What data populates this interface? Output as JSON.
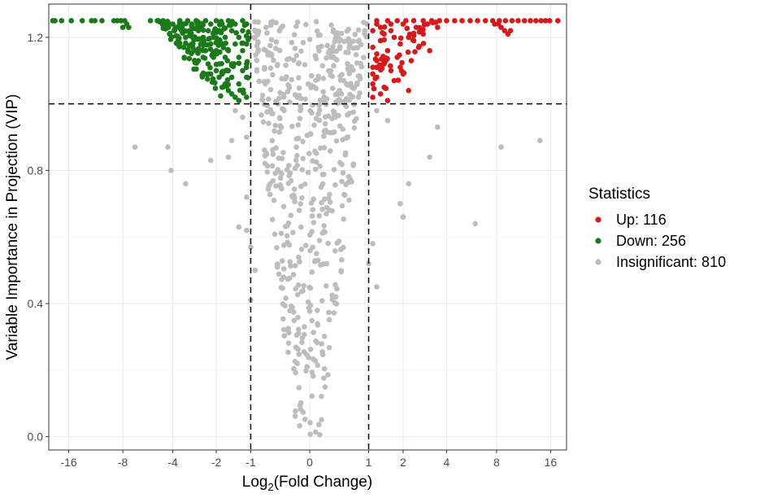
{
  "chart_data": {
    "type": "scatter",
    "title": "",
    "xlabel_main": "Log",
    "xlabel_sub": "2",
    "xlabel_rest": "(Fold Change)",
    "ylabel": "Variable Importance in Projection (VIP)",
    "xlim": [
      -20.5,
      19.5
    ],
    "ylim": [
      -0.04,
      1.3
    ],
    "x_ticks": [
      {
        "value": -16,
        "label": "-16"
      },
      {
        "value": -8,
        "label": "-8"
      },
      {
        "value": -4,
        "label": "-4"
      },
      {
        "value": -2,
        "label": "-2"
      },
      {
        "value": -1,
        "label": "-1"
      },
      {
        "value": 0,
        "label": "0"
      },
      {
        "value": 1,
        "label": "1"
      },
      {
        "value": 2,
        "label": "2"
      },
      {
        "value": 4,
        "label": "4"
      },
      {
        "value": 8,
        "label": "8"
      },
      {
        "value": 16,
        "label": "16"
      }
    ],
    "y_ticks": [
      {
        "value": 0.0,
        "label": "0.0"
      },
      {
        "value": 0.4,
        "label": "0.4"
      },
      {
        "value": 0.8,
        "label": "0.8"
      },
      {
        "value": 1.2,
        "label": "1.2"
      }
    ],
    "threshold_lines": {
      "vip": 1.0,
      "log2fc": [
        -1,
        1
      ]
    },
    "grid": true,
    "legend": {
      "title": "Statistics",
      "position": "right",
      "entries": [
        {
          "label": "Up: 116",
          "color": "#d7191c"
        },
        {
          "label": "Down: 256",
          "color": "#1a7a1a"
        },
        {
          "label": "Insignificant: 810",
          "color": "#bdbdbd"
        }
      ]
    },
    "series": [
      {
        "name": "Up",
        "color": "#d7191c",
        "count": 116,
        "points": [
          [
            1.2,
            1.25
          ],
          [
            1.5,
            1.25
          ],
          [
            1.8,
            1.25
          ],
          [
            2.1,
            1.25
          ],
          [
            2.4,
            1.25
          ],
          [
            2.8,
            1.25
          ],
          [
            3.2,
            1.25
          ],
          [
            3.6,
            1.25
          ],
          [
            4.0,
            1.25
          ],
          [
            4.5,
            1.25
          ],
          [
            5.0,
            1.25
          ],
          [
            5.6,
            1.25
          ],
          [
            6.2,
            1.25
          ],
          [
            6.9,
            1.25
          ],
          [
            7.6,
            1.25
          ],
          [
            8.3,
            1.25
          ],
          [
            9.0,
            1.25
          ],
          [
            9.8,
            1.25
          ],
          [
            10.6,
            1.25
          ],
          [
            11.5,
            1.25
          ],
          [
            12.4,
            1.25
          ],
          [
            13.3,
            1.25
          ],
          [
            14.2,
            1.25
          ],
          [
            15.0,
            1.25
          ],
          [
            15.8,
            1.25
          ],
          [
            17.5,
            1.25
          ],
          [
            1.2,
            1.24
          ],
          [
            1.6,
            1.24
          ],
          [
            2.0,
            1.24
          ],
          [
            2.5,
            1.23
          ],
          [
            3.0,
            1.24
          ],
          [
            3.5,
            1.23
          ],
          [
            8.5,
            1.23
          ],
          [
            8.9,
            1.22
          ],
          [
            9.3,
            1.21
          ],
          [
            9.6,
            1.22
          ],
          [
            8.2,
            1.24
          ],
          [
            7.8,
            1.24
          ],
          [
            1.1,
            1.22
          ],
          [
            1.4,
            1.21
          ],
          [
            1.7,
            1.2
          ],
          [
            2.2,
            1.2
          ],
          [
            1.3,
            1.19
          ],
          [
            1.9,
            1.18
          ],
          [
            2.6,
            1.17
          ],
          [
            3.1,
            1.16
          ],
          [
            1.1,
            1.17
          ],
          [
            1.5,
            1.16
          ],
          [
            1.2,
            1.15
          ],
          [
            1.8,
            1.14
          ],
          [
            2.3,
            1.13
          ],
          [
            1.4,
            1.12
          ],
          [
            1.1,
            1.11
          ],
          [
            1.6,
            1.1
          ],
          [
            2.0,
            1.09
          ],
          [
            1.2,
            1.08
          ],
          [
            1.7,
            1.07
          ],
          [
            1.1,
            1.06
          ],
          [
            1.4,
            1.05
          ],
          [
            2.2,
            1.04
          ],
          [
            1.3,
            1.03
          ],
          [
            1.1,
            1.02
          ],
          [
            1.5,
            1.01
          ],
          [
            1.2,
            1.13
          ],
          [
            1.1,
            1.09
          ],
          [
            1.9,
            1.11
          ],
          [
            2.4,
            1.19
          ],
          [
            2.8,
            1.21
          ],
          [
            1.3,
            1.23
          ],
          [
            1.6,
            1.22
          ]
        ]
      },
      {
        "name": "Down",
        "color": "#1a7a1a",
        "count": 256,
        "points": [
          [
            -19.5,
            1.25
          ],
          [
            -19.0,
            1.25
          ],
          [
            -17.5,
            1.25
          ],
          [
            -15.5,
            1.25
          ],
          [
            -13.5,
            1.25
          ],
          [
            -12.0,
            1.25
          ],
          [
            -11.5,
            1.25
          ],
          [
            -10.5,
            1.25
          ],
          [
            -9.0,
            1.25
          ],
          [
            -8.6,
            1.25
          ],
          [
            -8.2,
            1.25
          ],
          [
            -7.8,
            1.25
          ],
          [
            -7.6,
            1.24
          ],
          [
            -8.0,
            1.23
          ],
          [
            -7.4,
            1.23
          ],
          [
            -5.5,
            1.25
          ],
          [
            -5.0,
            1.25
          ],
          [
            -4.6,
            1.25
          ],
          [
            -4.3,
            1.24
          ],
          [
            -4.0,
            1.24
          ],
          [
            -3.8,
            1.23
          ],
          [
            -3.6,
            1.25
          ],
          [
            -3.4,
            1.24
          ],
          [
            -3.2,
            1.25
          ],
          [
            -3.0,
            1.24
          ],
          [
            -2.8,
            1.25
          ],
          [
            -2.6,
            1.24
          ],
          [
            -2.4,
            1.25
          ],
          [
            -2.2,
            1.24
          ],
          [
            -2.0,
            1.25
          ],
          [
            -1.8,
            1.24
          ],
          [
            -1.6,
            1.25
          ],
          [
            -1.4,
            1.24
          ],
          [
            -1.2,
            1.25
          ],
          [
            -1.1,
            1.24
          ],
          [
            -3.9,
            1.22
          ],
          [
            -3.5,
            1.22
          ],
          [
            -3.1,
            1.22
          ],
          [
            -2.7,
            1.22
          ],
          [
            -2.3,
            1.22
          ],
          [
            -1.9,
            1.22
          ],
          [
            -1.5,
            1.22
          ],
          [
            -1.2,
            1.22
          ],
          [
            -3.3,
            1.2
          ],
          [
            -2.9,
            1.2
          ],
          [
            -2.5,
            1.2
          ],
          [
            -2.1,
            1.2
          ],
          [
            -1.7,
            1.2
          ],
          [
            -1.3,
            1.2
          ],
          [
            -3.0,
            1.18
          ],
          [
            -2.6,
            1.18
          ],
          [
            -2.2,
            1.18
          ],
          [
            -1.8,
            1.18
          ],
          [
            -1.4,
            1.18
          ],
          [
            -1.1,
            1.18
          ],
          [
            -2.8,
            1.16
          ],
          [
            -2.4,
            1.16
          ],
          [
            -2.0,
            1.16
          ],
          [
            -1.6,
            1.16
          ],
          [
            -1.2,
            1.16
          ],
          [
            -2.5,
            1.14
          ],
          [
            -2.1,
            1.14
          ],
          [
            -1.7,
            1.14
          ],
          [
            -1.3,
            1.14
          ],
          [
            -2.3,
            1.12
          ],
          [
            -1.9,
            1.12
          ],
          [
            -1.5,
            1.12
          ],
          [
            -1.1,
            1.12
          ],
          [
            -2.0,
            1.1
          ],
          [
            -1.6,
            1.1
          ],
          [
            -1.2,
            1.1
          ],
          [
            -1.9,
            1.08
          ],
          [
            -1.5,
            1.08
          ],
          [
            -1.1,
            1.08
          ],
          [
            -1.7,
            1.06
          ],
          [
            -1.3,
            1.06
          ],
          [
            -1.6,
            1.04
          ],
          [
            -1.2,
            1.04
          ],
          [
            -1.4,
            1.02
          ],
          [
            -1.1,
            1.02
          ],
          [
            -1.3,
            1.01
          ],
          [
            -4.2,
            1.21
          ],
          [
            -3.7,
            1.19
          ],
          [
            -3.4,
            1.17
          ],
          [
            -2.7,
            1.13
          ],
          [
            -2.2,
            1.09
          ],
          [
            -1.8,
            1.05
          ],
          [
            -1.5,
            1.03
          ]
        ]
      },
      {
        "name": "Insignificant",
        "color": "#bdbdbd",
        "count": 810,
        "points": [
          [
            -6.8,
            0.87
          ],
          [
            -4.3,
            0.87
          ],
          [
            -4.1,
            0.8
          ],
          [
            -3.3,
            0.76
          ],
          [
            -2.2,
            0.83
          ],
          [
            -1.5,
            0.89
          ],
          [
            -1.1,
            0.9
          ],
          [
            -1.6,
            0.84
          ],
          [
            2.2,
            0.76
          ],
          [
            1.9,
            0.7
          ],
          [
            2.0,
            0.66
          ],
          [
            3.1,
            0.84
          ],
          [
            3.5,
            0.93
          ],
          [
            6.0,
            0.64
          ],
          [
            8.5,
            0.87
          ],
          [
            14.0,
            0.89
          ],
          [
            1.5,
            0.95
          ],
          [
            1.2,
            0.98
          ],
          [
            -1.2,
            0.96
          ],
          [
            -1.4,
            0.98
          ],
          [
            -1.1,
            0.72
          ],
          [
            -1.3,
            0.63
          ],
          [
            -1.1,
            0.62
          ],
          [
            -1.0,
            0.57
          ],
          [
            1.1,
            0.58
          ],
          [
            1.0,
            0.52
          ],
          [
            -0.9,
            0.5
          ],
          [
            1.2,
            0.45
          ],
          [
            -1.0,
            0.41
          ]
        ]
      }
    ]
  }
}
